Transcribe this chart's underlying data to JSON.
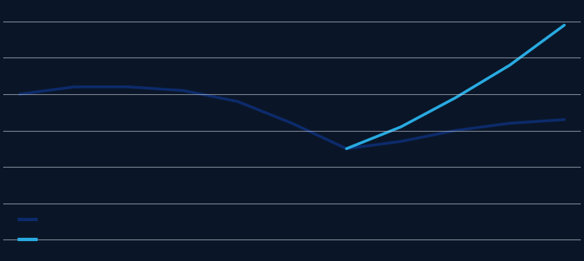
{
  "background_color": "#0a1628",
  "grid_color": "#c8cdd8",
  "line1_color": "#0d2b6b",
  "line2_color": "#29abe2",
  "line1_x": [
    0,
    1,
    2,
    3,
    4,
    5,
    6,
    7,
    8,
    9,
    10
  ],
  "line1_y": [
    75,
    77,
    77,
    76,
    73,
    67,
    60,
    62,
    65,
    67,
    68
  ],
  "line2_x": [
    6,
    7,
    8,
    9,
    10
  ],
  "line2_y": [
    60,
    66,
    74,
    83,
    94
  ],
  "ylim": [
    30,
    100
  ],
  "xlim": [
    -0.3,
    10.3
  ],
  "line_width": 2.5,
  "grid_yticks": [
    35,
    45,
    55,
    65,
    75,
    85,
    95
  ],
  "legend_line1_color": "#0d2b6b",
  "legend_line2_color": "#29abe2"
}
